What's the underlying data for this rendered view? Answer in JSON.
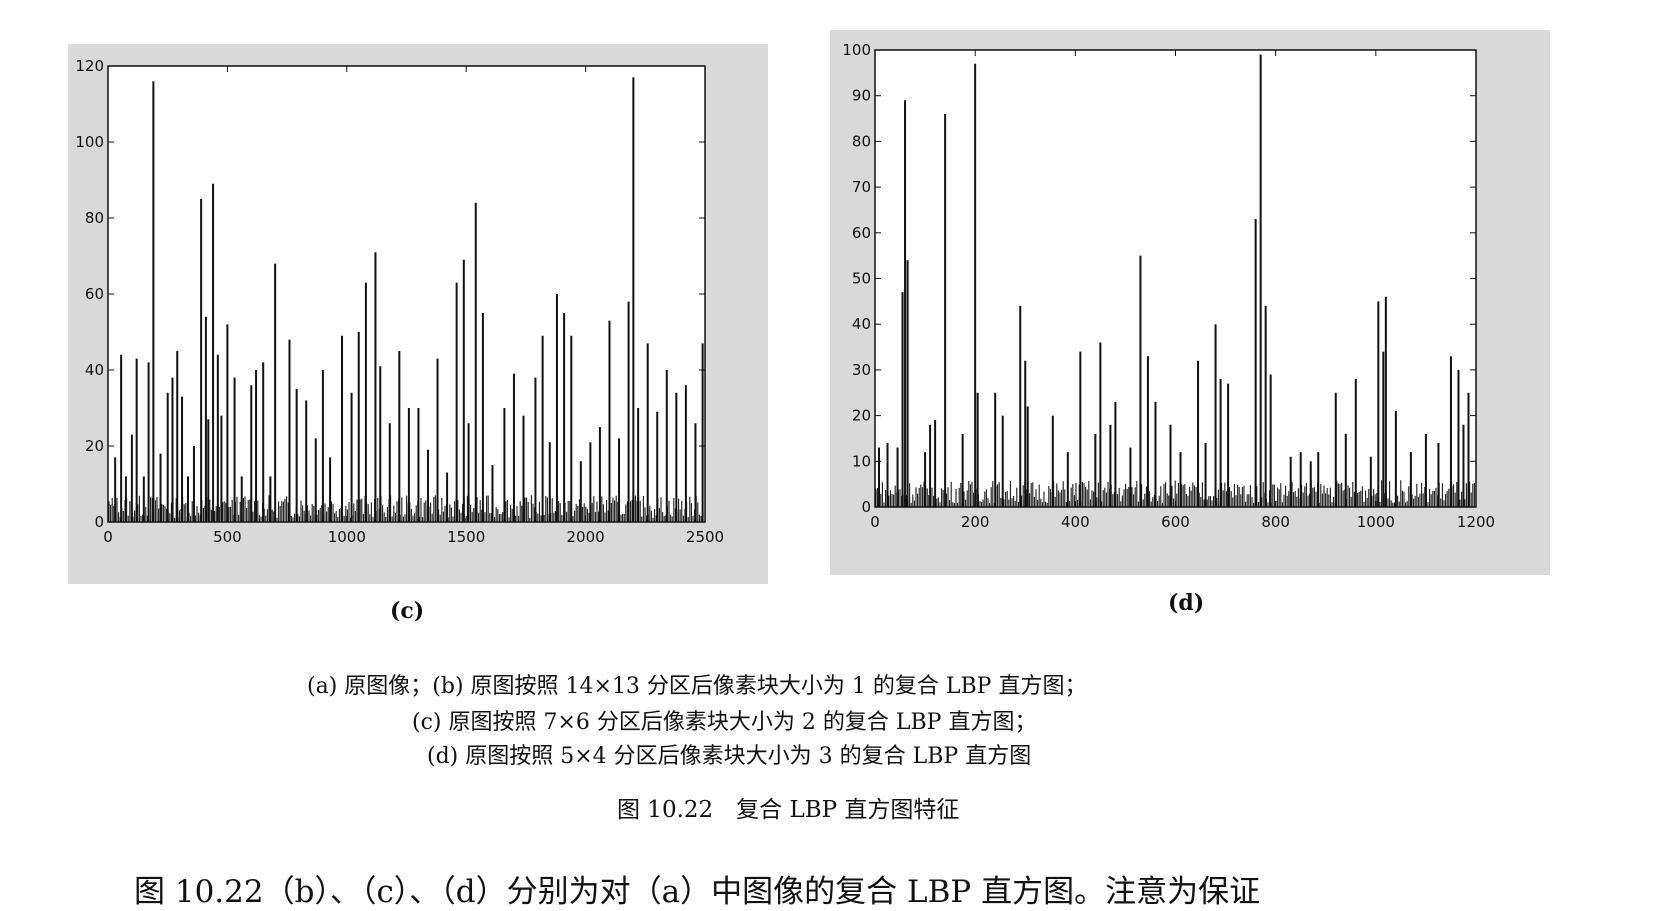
{
  "chart_data": [
    {
      "type": "bar",
      "panel_label": "(c)",
      "xlim": [
        0,
        2500
      ],
      "ylim": [
        0,
        120
      ],
      "xticks": [
        0,
        500,
        1000,
        1500,
        2000,
        2500
      ],
      "yticks": [
        0,
        20,
        40,
        60,
        80,
        100,
        120
      ],
      "xtick_labels": [
        "0",
        "500",
        "1000",
        "1500",
        "2000",
        "2500"
      ],
      "ytick_labels": [
        "0",
        "20",
        "40",
        "60",
        "80",
        "100",
        "120"
      ],
      "grid": false,
      "x": [
        30,
        55,
        75,
        100,
        120,
        150,
        170,
        190,
        220,
        250,
        270,
        290,
        310,
        335,
        360,
        390,
        410,
        420,
        440,
        460,
        475,
        500,
        530,
        560,
        600,
        620,
        650,
        680,
        700,
        760,
        790,
        830,
        870,
        900,
        930,
        980,
        1020,
        1050,
        1080,
        1120,
        1140,
        1180,
        1220,
        1260,
        1300,
        1340,
        1380,
        1420,
        1460,
        1490,
        1510,
        1540,
        1570,
        1610,
        1660,
        1700,
        1740,
        1790,
        1820,
        1850,
        1880,
        1910,
        1940,
        1980,
        2020,
        2060,
        2100,
        2140,
        2180,
        2200,
        2220,
        2260,
        2300,
        2340,
        2380,
        2420,
        2460,
        2490
      ],
      "values": [
        17,
        44,
        12,
        23,
        43,
        12,
        42,
        116,
        18,
        34,
        38,
        45,
        33,
        12,
        20,
        85,
        54,
        27,
        89,
        44,
        28,
        52,
        38,
        12,
        36,
        40,
        42,
        12,
        68,
        48,
        35,
        32,
        22,
        40,
        17,
        49,
        34,
        50,
        63,
        71,
        41,
        26,
        45,
        30,
        30,
        19,
        43,
        13,
        63,
        69,
        26,
        84,
        55,
        15,
        30,
        39,
        28,
        38,
        49,
        21,
        60,
        55,
        49,
        16,
        21,
        25,
        53,
        22,
        58,
        117,
        30,
        47,
        29,
        40,
        34,
        36,
        26,
        47
      ]
    },
    {
      "type": "bar",
      "panel_label": "(d)",
      "xlim": [
        0,
        1200
      ],
      "ylim": [
        0,
        100
      ],
      "xticks": [
        0,
        200,
        400,
        600,
        800,
        1000,
        1200
      ],
      "yticks": [
        0,
        10,
        20,
        30,
        40,
        50,
        60,
        70,
        80,
        90,
        100
      ],
      "xtick_labels": [
        "0",
        "200",
        "400",
        "600",
        "800",
        "1000",
        "1200"
      ],
      "ytick_labels": [
        "0",
        "10",
        "20",
        "30",
        "40",
        "50",
        "60",
        "70",
        "80",
        "90",
        "100"
      ],
      "grid": false,
      "x": [
        8,
        25,
        45,
        55,
        60,
        65,
        100,
        110,
        120,
        140,
        175,
        200,
        205,
        240,
        255,
        290,
        300,
        305,
        355,
        385,
        410,
        440,
        450,
        470,
        480,
        510,
        530,
        545,
        560,
        590,
        610,
        645,
        660,
        680,
        690,
        705,
        760,
        770,
        780,
        790,
        830,
        850,
        870,
        885,
        920,
        940,
        960,
        990,
        1005,
        1015,
        1020,
        1040,
        1070,
        1100,
        1125,
        1150,
        1165,
        1175,
        1185
      ],
      "values": [
        13,
        14,
        13,
        47,
        89,
        54,
        12,
        18,
        19,
        86,
        16,
        97,
        25,
        25,
        20,
        44,
        32,
        22,
        20,
        12,
        34,
        16,
        36,
        18,
        23,
        13,
        55,
        33,
        23,
        18,
        12,
        32,
        14,
        40,
        28,
        27,
        63,
        99,
        44,
        29,
        11,
        12,
        10,
        12,
        25,
        16,
        28,
        11,
        45,
        34,
        46,
        21,
        12,
        16,
        14,
        33,
        30,
        18,
        25
      ]
    }
  ],
  "text": {
    "label_c": "(c)",
    "label_d": "(d)",
    "caption_a_b": "(a) 原图像；(b) 原图按照 14×13 分区后像素块大小为 1 的复合 LBP 直方图；",
    "caption_c": "(c) 原图按照 7×6 分区后像素块大小为 2 的复合 LBP 直方图；",
    "caption_d": "(d) 原图按照 5×4 分区后像素块大小为 3 的复合 LBP 直方图",
    "figure_title": "图 10.22　复合 LBP 直方图特征",
    "body_line": "图 10.22（b）、（c）、（d）分别为对（a）中图像的复合 LBP 直方图。注意为保证"
  }
}
